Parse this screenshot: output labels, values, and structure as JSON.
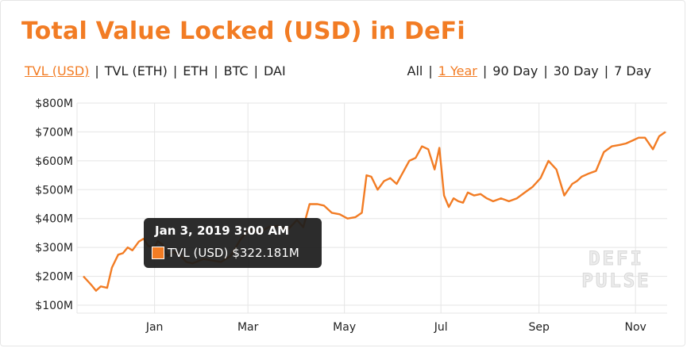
{
  "title": "Total Value Locked (USD) in DeFi",
  "metric_tabs": [
    {
      "label": "TVL (USD)",
      "active": true
    },
    {
      "label": "TVL (ETH)",
      "active": false
    },
    {
      "label": "ETH",
      "active": false
    },
    {
      "label": "BTC",
      "active": false
    },
    {
      "label": "DAI",
      "active": false
    }
  ],
  "range_tabs": [
    {
      "label": "All",
      "active": false
    },
    {
      "label": "1 Year",
      "active": true
    },
    {
      "label": "90 Day",
      "active": false
    },
    {
      "label": "30 Day",
      "active": false
    },
    {
      "label": "7 Day",
      "active": false
    }
  ],
  "tooltip": {
    "date": "Jan 3, 2019 3:00 AM",
    "series": "TVL (USD)",
    "value": "$322.181M"
  },
  "watermark": [
    "DEFI",
    "PULSE"
  ],
  "colors": {
    "accent": "#f27c24",
    "tooltip_bg": "#1c1c1c",
    "grid": "#e5e5e5"
  },
  "chart_data": {
    "type": "line",
    "title": "Total Value Locked (USD) in DeFi",
    "xlabel": "",
    "ylabel": "",
    "x_tick_labels": [
      "Jan",
      "Mar",
      "May",
      "Jul",
      "Sep",
      "Nov"
    ],
    "y_tick_labels": [
      "$100M",
      "$200M",
      "$300M",
      "$400M",
      "$500M",
      "$600M",
      "$700M",
      "$800M"
    ],
    "ylim": [
      100,
      800
    ],
    "y_unit": "USD millions",
    "grid": true,
    "series": [
      {
        "name": "TVL (USD)",
        "color": "#f27c24",
        "x": [
          "2018-11-17",
          "2018-11-22",
          "2018-11-25",
          "2018-11-28",
          "2018-12-02",
          "2018-12-05",
          "2018-12-09",
          "2018-12-12",
          "2018-12-15",
          "2018-12-18",
          "2018-12-22",
          "2018-12-25",
          "2018-12-28",
          "2019-01-01",
          "2019-01-03",
          "2019-01-06",
          "2019-01-09",
          "2019-01-13",
          "2019-01-17",
          "2019-01-21",
          "2019-01-25",
          "2019-02-01",
          "2019-02-06",
          "2019-02-12",
          "2019-02-18",
          "2019-02-24",
          "2019-03-02",
          "2019-03-08",
          "2019-03-14",
          "2019-03-20",
          "2019-03-26",
          "2019-04-01",
          "2019-04-05",
          "2019-04-09",
          "2019-04-14",
          "2019-04-18",
          "2019-04-23",
          "2019-04-28",
          "2019-05-03",
          "2019-05-08",
          "2019-05-12",
          "2019-05-15",
          "2019-05-18",
          "2019-05-22",
          "2019-05-26",
          "2019-05-30",
          "2019-06-03",
          "2019-06-07",
          "2019-06-11",
          "2019-06-15",
          "2019-06-19",
          "2019-06-23",
          "2019-06-27",
          "2019-06-30",
          "2019-07-03",
          "2019-07-06",
          "2019-07-09",
          "2019-07-12",
          "2019-07-15",
          "2019-07-18",
          "2019-07-22",
          "2019-07-26",
          "2019-07-30",
          "2019-08-03",
          "2019-08-08",
          "2019-08-13",
          "2019-08-18",
          "2019-08-23",
          "2019-08-28",
          "2019-09-02",
          "2019-09-07",
          "2019-09-12",
          "2019-09-17",
          "2019-09-22",
          "2019-09-25",
          "2019-09-28",
          "2019-10-02",
          "2019-10-07",
          "2019-10-12",
          "2019-10-17",
          "2019-10-22",
          "2019-10-26",
          "2019-10-30",
          "2019-11-03",
          "2019-11-07",
          "2019-11-12",
          "2019-11-16",
          "2019-11-20"
        ],
        "values": [
          200,
          170,
          150,
          165,
          160,
          230,
          275,
          280,
          300,
          290,
          320,
          330,
          305,
          300,
          322,
          310,
          270,
          285,
          275,
          250,
          245,
          260,
          255,
          250,
          270,
          325,
          365,
          350,
          370,
          375,
          360,
          395,
          370,
          450,
          450,
          445,
          420,
          415,
          400,
          405,
          420,
          550,
          545,
          500,
          530,
          540,
          520,
          560,
          600,
          610,
          650,
          640,
          570,
          645,
          480,
          440,
          470,
          460,
          455,
          490,
          480,
          485,
          470,
          460,
          470,
          460,
          470,
          490,
          510,
          540,
          600,
          570,
          480,
          520,
          530,
          545,
          555,
          565,
          630,
          650,
          655,
          660,
          670,
          680,
          680,
          640,
          685,
          700
        ]
      }
    ]
  }
}
